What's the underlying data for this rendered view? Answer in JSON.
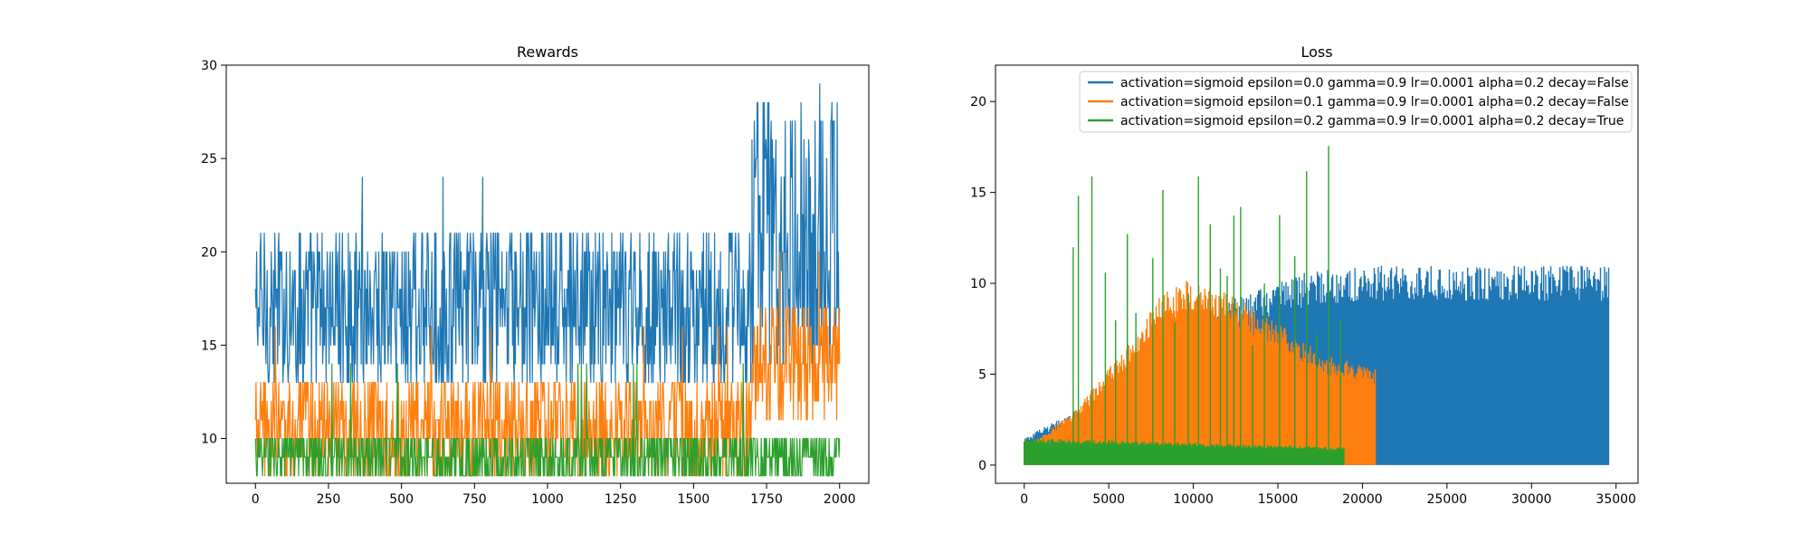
{
  "figure": {
    "background": "#ffffff"
  },
  "chart_data": [
    {
      "type": "line",
      "title": "Rewards",
      "xlabel": "",
      "ylabel": "",
      "xlim": [
        -100,
        2100
      ],
      "ylim": [
        7.6,
        30
      ],
      "xticks": [
        0,
        250,
        500,
        750,
        1000,
        1250,
        1500,
        1750,
        2000
      ],
      "yticks": [
        10,
        15,
        20,
        25,
        30
      ],
      "grid": false,
      "legend": "none",
      "series": [
        {
          "color": "#1f77b4",
          "segments": [
            {
              "x": [
                0,
                1700
              ],
              "band": [
                13,
                21
              ],
              "peak": 24
            },
            {
              "x": [
                1700,
                2000
              ],
              "band": [
                14,
                28
              ],
              "peak": 29
            }
          ]
        },
        {
          "color": "#ff7f0e",
          "segments": [
            {
              "x": [
                0,
                1700
              ],
              "band": [
                8,
                13
              ],
              "peak": 16
            },
            {
              "x": [
                1700,
                2000
              ],
              "band": [
                11,
                17
              ],
              "peak": 20
            }
          ]
        },
        {
          "color": "#2ca02c",
          "segments": [
            {
              "x": [
                0,
                2000
              ],
              "band": [
                8,
                10
              ],
              "peak": 14
            }
          ]
        }
      ]
    },
    {
      "type": "line",
      "title": "Loss",
      "xlabel": "",
      "ylabel": "",
      "xlim": [
        -1700,
        36300
      ],
      "ylim": [
        -1,
        22
      ],
      "xticks": [
        0,
        5000,
        10000,
        15000,
        20000,
        25000,
        30000,
        35000
      ],
      "yticks": [
        0,
        5,
        10,
        15,
        20
      ],
      "grid": false,
      "legend": "upper right",
      "series": [
        {
          "name": "activation=sigmoid epsilon=0.0 gamma=0.9 lr=0.0001 alpha=0.2 decay=False",
          "color": "#1f77b4",
          "x_end": 34600,
          "envelope": [
            [
              0,
              1.5
            ],
            [
              4000,
              3.5
            ],
            [
              8000,
              6.5
            ],
            [
              12000,
              9.0
            ],
            [
              16000,
              10.5
            ],
            [
              20000,
              11.0
            ],
            [
              34600,
              11.0
            ]
          ],
          "max_loss": 12
        },
        {
          "name": "activation=sigmoid epsilon=0.1 gamma=0.9 lr=0.0001 alpha=0.2 decay=False",
          "color": "#ff7f0e",
          "x_end": 20800,
          "envelope": [
            [
              0,
              1.0
            ],
            [
              3000,
              3.0
            ],
            [
              6000,
              6.5
            ],
            [
              8000,
              9.5
            ],
            [
              10000,
              10.3
            ],
            [
              13000,
              9.0
            ],
            [
              18000,
              6.0
            ],
            [
              20800,
              5.3
            ]
          ],
          "max_loss": 10.5
        },
        {
          "name": "activation=sigmoid epsilon=0.2 gamma=0.9 lr=0.0001 alpha=0.2 decay=True",
          "color": "#2ca02c",
          "x_end": 18900,
          "envelope": [
            [
              0,
              1.5
            ],
            [
              18900,
              1.0
            ]
          ],
          "spikes": [
            2900,
            3200,
            4000,
            4800,
            5400,
            6100,
            6600,
            7600,
            8200,
            8900,
            9700,
            10300,
            11000,
            11600,
            12000,
            12400,
            12800,
            13500,
            14200,
            15100,
            16000,
            16700,
            17300,
            18000,
            18700
          ],
          "max_loss": 18
        }
      ]
    }
  ]
}
